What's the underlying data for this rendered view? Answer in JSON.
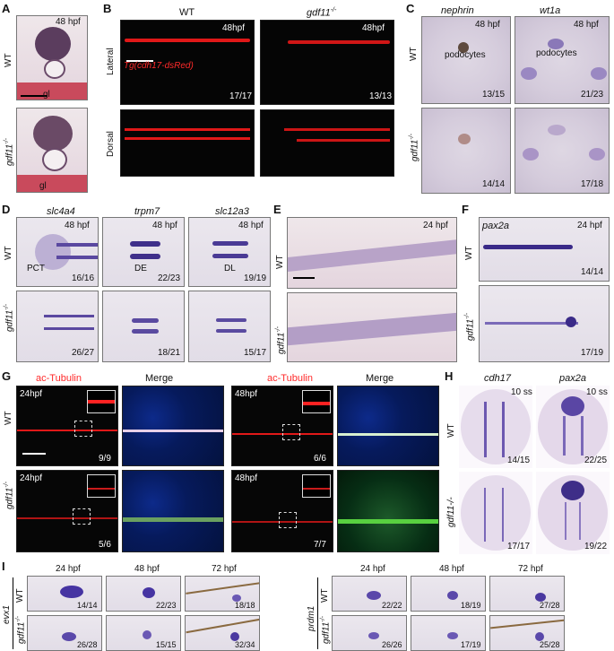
{
  "panels": {
    "A": {
      "label": "A",
      "wt": "WT",
      "mut": "gdf11",
      "mut_sup": "-/-",
      "stage": "48 hpf",
      "gl": "gl"
    },
    "B": {
      "label": "B",
      "wt": "WT",
      "mut": "gdf11",
      "mut_sup": "-/-",
      "stage1": "48hpf",
      "stage2": "48hpf",
      "lateral": "Lateral",
      "dorsal": "Dorsal",
      "transgene": "Tg(cdh17-dsRed)",
      "c1": "17/17",
      "c2": "13/13"
    },
    "C": {
      "label": "C",
      "gene1": "nephrin",
      "gene2": "wt1a",
      "stage": "48 hpf",
      "wt": "WT",
      "mut": "gdf11",
      "mut_sup": "-/-",
      "podo1": "podocytes",
      "podo2": "podocytes",
      "c1": "13/15",
      "c2": "21/23",
      "c3": "14/14",
      "c4": "17/18"
    },
    "D": {
      "label": "D",
      "gene1": "slc4a4",
      "gene2": "trpm7",
      "gene3": "slc12a3",
      "stage": "48 hpf",
      "wt": "WT",
      "mut": "gdf11",
      "mut_sup": "-/-",
      "pct": "PCT",
      "de": "DE",
      "dl": "DL",
      "c1": "16/16",
      "c2": "22/23",
      "c3": "19/19",
      "c4": "26/27",
      "c5": "18/21",
      "c6": "15/17"
    },
    "E": {
      "label": "E",
      "stage": "24 hpf",
      "wt": "WT",
      "mut": "gdf11",
      "mut_sup": "-/-"
    },
    "F": {
      "label": "F",
      "gene": "pax2a",
      "stage": "24 hpf",
      "wt": "WT",
      "mut": "gdf11",
      "mut_sup": "-/-",
      "c1": "14/14",
      "c2": "17/19"
    },
    "G": {
      "label": "G",
      "tub": "ac-Tubulin",
      "merge": "Merge",
      "s24": "24hpf",
      "s48": "48hpf",
      "wt": "WT",
      "mut": "gdf11",
      "mut_sup": "-/-",
      "c1": "9/9",
      "c2": "6/6",
      "c3": "5/6",
      "c4": "7/7"
    },
    "H": {
      "label": "H",
      "gene1": "cdh17",
      "gene2": "pax2a",
      "ss": "10 ss",
      "wt": "WT",
      "mut": "gdf11-/-",
      "c1": "14/15",
      "c2": "22/25",
      "c3": "17/17",
      "c4": "19/22"
    },
    "I": {
      "label": "I",
      "t24": "24 hpf",
      "t48": "48 hpf",
      "t72": "72 hpf",
      "gene1": "evx1",
      "gene2": "prdm1",
      "wt": "WT",
      "mut": "gdf11",
      "mut_sup": "-/-",
      "evx1": [
        "14/14",
        "22/23",
        "18/18",
        "26/28",
        "15/15",
        "32/34"
      ],
      "prdm1": [
        "22/22",
        "18/19",
        "27/28",
        "26/26",
        "17/19",
        "25/28"
      ]
    }
  },
  "colors": {
    "red": "#ff2a2a",
    "ish_stain": "#4b3a8c",
    "nuclei": "#0d2a8a"
  }
}
